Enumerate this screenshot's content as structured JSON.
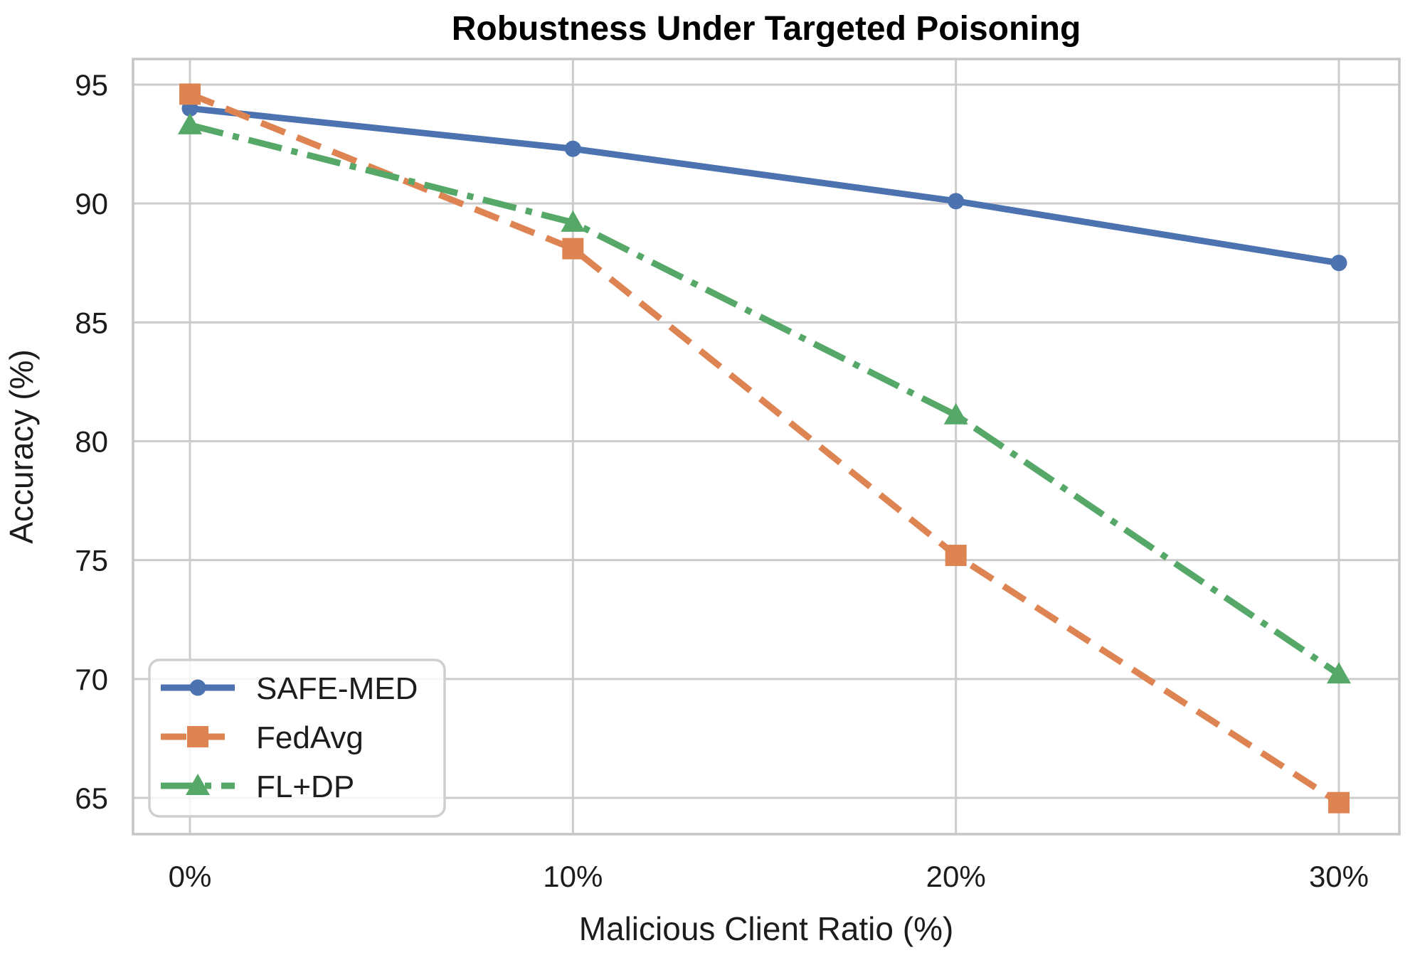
{
  "chart_data": {
    "type": "line",
    "title": "Robustness Under Targeted Poisoning",
    "xlabel": "Malicious Client Ratio (%)",
    "ylabel": "Accuracy (%)",
    "categories": [
      "0%",
      "10%",
      "20%",
      "30%"
    ],
    "y_ticks": [
      65,
      70,
      75,
      80,
      85,
      90,
      95
    ],
    "ylim": [
      63.5,
      96.1
    ],
    "grid": true,
    "legend_position": "lower-left",
    "series": [
      {
        "name": "SAFE-MED",
        "values": [
          94.0,
          92.3,
          90.1,
          87.5
        ],
        "color": "#4C72B0",
        "marker": "circle",
        "line_style": "solid"
      },
      {
        "name": "FedAvg",
        "values": [
          94.6,
          88.1,
          75.2,
          64.8
        ],
        "color": "#DD8452",
        "marker": "square",
        "line_style": "dashed"
      },
      {
        "name": "FL+DP",
        "values": [
          93.3,
          89.2,
          81.1,
          70.2
        ],
        "color": "#55A868",
        "marker": "triangle",
        "line_style": "dashdot"
      }
    ],
    "grid_color": "#cccccc",
    "spine_color": "#c6c6c6",
    "text_color": "#1c1c1c"
  }
}
